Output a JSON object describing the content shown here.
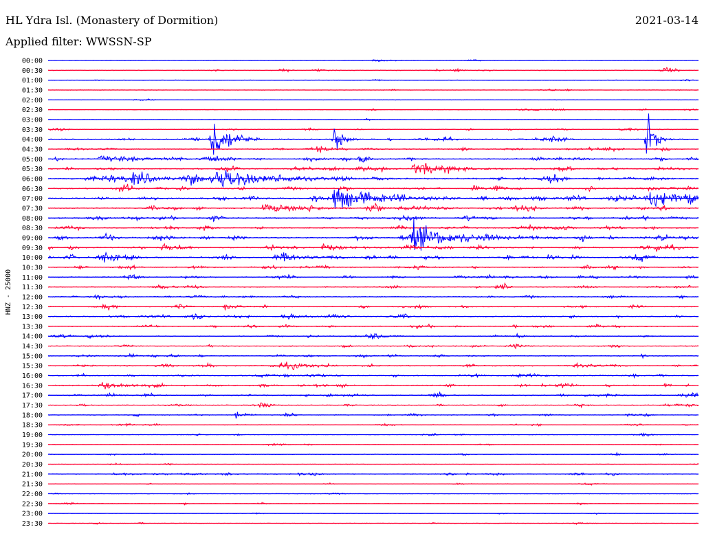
{
  "header": {
    "station": "HL Ydra Isl. (Monastery of Dormition)",
    "filter": "Applied filter: WWSSN-SP",
    "date": "2021-03-14"
  },
  "chart_data": {
    "type": "line",
    "title": "HL Ydra Isl. (Monastery of Dormition)",
    "ylabel": "HNZ - 25000",
    "row_labels": [
      "00:00",
      "00:30",
      "01:00",
      "01:30",
      "02:00",
      "02:30",
      "03:00",
      "03:30",
      "04:00",
      "04:30",
      "05:00",
      "05:30",
      "06:00",
      "06:30",
      "07:00",
      "07:30",
      "08:00",
      "08:30",
      "09:00",
      "09:30",
      "10:00",
      "10:30",
      "11:00",
      "11:30",
      "12:00",
      "12:30",
      "13:00",
      "13:30",
      "14:00",
      "14:30",
      "15:00",
      "15:30",
      "16:00",
      "16:30",
      "17:00",
      "17:30",
      "18:00",
      "18:30",
      "19:00",
      "19:30",
      "20:00",
      "20:30",
      "21:00",
      "21:30",
      "22:00",
      "22:30",
      "23:00",
      "23:30"
    ],
    "x_span_minutes": 30,
    "trace_colors": [
      "#0000ff",
      "#ff0033"
    ],
    "row_activity": [
      0.05,
      0.3,
      0.1,
      0.1,
      0.05,
      0.2,
      0.05,
      0.3,
      0.5,
      0.6,
      0.7,
      0.8,
      1.0,
      0.8,
      1.0,
      0.8,
      0.8,
      0.7,
      0.9,
      0.8,
      0.9,
      0.6,
      0.6,
      0.5,
      0.5,
      0.5,
      0.6,
      0.5,
      0.5,
      0.4,
      0.5,
      0.6,
      0.6,
      0.6,
      0.6,
      0.4,
      0.4,
      0.3,
      0.2,
      0.15,
      0.25,
      0.1,
      0.4,
      0.15,
      0.1,
      0.15,
      0.1,
      0.1
    ],
    "events": [
      {
        "row": 0,
        "x": 0.5,
        "amp": 3,
        "width": 0.02
      },
      {
        "row": 1,
        "x": 0.41,
        "amp": 4,
        "width": 0.01
      },
      {
        "row": 7,
        "x": 0.88,
        "amp": 4,
        "width": 0.03
      },
      {
        "row": 8,
        "x": 0.25,
        "amp": 60,
        "width": 0.02
      },
      {
        "row": 8,
        "x": 0.44,
        "amp": 35,
        "width": 0.01
      },
      {
        "row": 8,
        "x": 0.92,
        "amp": 60,
        "width": 0.01
      },
      {
        "row": 10,
        "x": 0.08,
        "amp": 6,
        "width": 0.06
      },
      {
        "row": 10,
        "x": 0.48,
        "amp": 8,
        "width": 0.01
      },
      {
        "row": 11,
        "x": 0.56,
        "amp": 12,
        "width": 0.05
      },
      {
        "row": 12,
        "x": 0.13,
        "amp": 12,
        "width": 0.03
      },
      {
        "row": 12,
        "x": 0.26,
        "amp": 20,
        "width": 0.05
      },
      {
        "row": 12,
        "x": 0.35,
        "amp": 7,
        "width": 0.04
      },
      {
        "row": 14,
        "x": 0.44,
        "amp": 25,
        "width": 0.04
      },
      {
        "row": 14,
        "x": 0.92,
        "amp": 18,
        "width": 0.04
      },
      {
        "row": 14,
        "x": 0.98,
        "amp": 14,
        "width": 0.02
      },
      {
        "row": 15,
        "x": 0.33,
        "amp": 8,
        "width": 0.05
      },
      {
        "row": 18,
        "x": 0.56,
        "amp": 30,
        "width": 0.05
      },
      {
        "row": 19,
        "x": 0.42,
        "amp": 8,
        "width": 0.03
      },
      {
        "row": 20,
        "x": 0.08,
        "amp": 8,
        "width": 0.02
      },
      {
        "row": 20,
        "x": 0.77,
        "amp": 7,
        "width": 0.01
      },
      {
        "row": 25,
        "x": 0.27,
        "amp": 6,
        "width": 0.02
      },
      {
        "row": 26,
        "x": 0.36,
        "amp": 6,
        "width": 0.02
      },
      {
        "row": 28,
        "x": 0.72,
        "amp": 6,
        "width": 0.01
      },
      {
        "row": 31,
        "x": 0.81,
        "amp": 8,
        "width": 0.02
      },
      {
        "row": 33,
        "x": 0.08,
        "amp": 9,
        "width": 0.04
      },
      {
        "row": 36,
        "x": 0.29,
        "amp": 12,
        "width": 0.01
      },
      {
        "row": 42,
        "x": 0.1,
        "amp": 2,
        "width": 0.1
      },
      {
        "row": 47,
        "x": 0.81,
        "amp": 4,
        "width": 0.01
      }
    ]
  }
}
